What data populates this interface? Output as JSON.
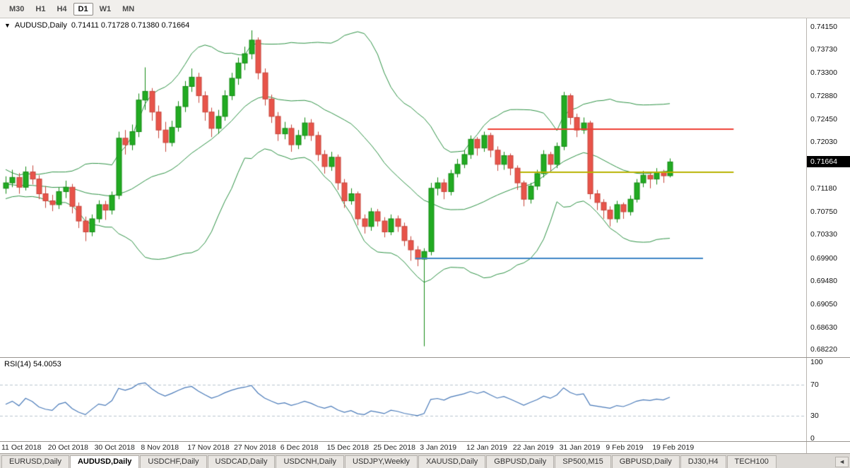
{
  "toolbar": {
    "timeframes": [
      {
        "label": "M30",
        "active": false
      },
      {
        "label": "H1",
        "active": false
      },
      {
        "label": "H4",
        "active": false
      },
      {
        "label": "D1",
        "active": true
      },
      {
        "label": "W1",
        "active": false
      },
      {
        "label": "MN",
        "active": false
      }
    ]
  },
  "chart_data": {
    "type": "candlestick",
    "symbol": "AUDUSD",
    "timeframe": "Daily",
    "title": "AUDUSD,Daily",
    "ohlc_text": "0.71411 0.71728 0.71380 0.71664",
    "last_ohlc": {
      "open": 0.71411,
      "high": 0.71728,
      "low": 0.7138,
      "close": 0.71664
    },
    "price_marker_label": "0.71664",
    "dropdown_icon": "▼",
    "y_range": [
      0.6808,
      0.743
    ],
    "y_tick_labels": [
      "0.74150",
      "0.73730",
      "0.73300",
      "0.72880",
      "0.72450",
      "0.72030",
      "0.71600",
      "0.71180",
      "0.70750",
      "0.70330",
      "0.69900",
      "0.69480",
      "0.69050",
      "0.68630",
      "0.68220"
    ],
    "x_tick_labels": [
      {
        "label": "11 Oct 2018",
        "index": 0
      },
      {
        "label": "20 Oct 2018",
        "index": 7
      },
      {
        "label": "30 Oct 2018",
        "index": 14
      },
      {
        "label": "8 Nov 2018",
        "index": 21
      },
      {
        "label": "17 Nov 2018",
        "index": 28
      },
      {
        "label": "27 Nov 2018",
        "index": 35
      },
      {
        "label": "6 Dec 2018",
        "index": 42
      },
      {
        "label": "15 Dec 2018",
        "index": 49
      },
      {
        "label": "25 Dec 2018",
        "index": 56
      },
      {
        "label": "3 Jan 2019",
        "index": 63
      },
      {
        "label": "12 Jan 2019",
        "index": 70
      },
      {
        "label": "22 Jan 2019",
        "index": 77
      },
      {
        "label": "31 Jan 2019",
        "index": 84
      },
      {
        "label": "9 Feb 2019",
        "index": 91
      },
      {
        "label": "19 Feb 2019",
        "index": 98
      }
    ],
    "pre_closes": [
      0.7155,
      0.7162,
      0.7148,
      0.7135,
      0.7142,
      0.7128,
      0.7115,
      0.7122,
      0.7108,
      0.7118,
      0.7125,
      0.7132,
      0.712,
      0.7112,
      0.7105,
      0.7118,
      0.7126,
      0.7132,
      0.7122,
      0.7115
    ],
    "candles": [
      [
        0.7118,
        0.714,
        0.7108,
        0.7128
      ],
      [
        0.7128,
        0.7152,
        0.712,
        0.7138
      ],
      [
        0.7138,
        0.7146,
        0.7108,
        0.712
      ],
      [
        0.712,
        0.7158,
        0.7114,
        0.7148
      ],
      [
        0.7148,
        0.716,
        0.7125,
        0.7135
      ],
      [
        0.7135,
        0.7142,
        0.7098,
        0.7108
      ],
      [
        0.7108,
        0.7122,
        0.7082,
        0.7095
      ],
      [
        0.7095,
        0.7106,
        0.7076,
        0.7088
      ],
      [
        0.7088,
        0.712,
        0.708,
        0.7112
      ],
      [
        0.7112,
        0.7132,
        0.71,
        0.712
      ],
      [
        0.712,
        0.7126,
        0.7072,
        0.7085
      ],
      [
        0.7085,
        0.7092,
        0.7045,
        0.7058
      ],
      [
        0.7058,
        0.7066,
        0.7021,
        0.7038
      ],
      [
        0.7038,
        0.707,
        0.703,
        0.7062
      ],
      [
        0.7062,
        0.7096,
        0.7055,
        0.7088
      ],
      [
        0.7088,
        0.7095,
        0.706,
        0.7078
      ],
      [
        0.7078,
        0.7112,
        0.707,
        0.7105
      ],
      [
        0.7105,
        0.7222,
        0.7098,
        0.721
      ],
      [
        0.721,
        0.7225,
        0.718,
        0.7198
      ],
      [
        0.7198,
        0.7235,
        0.7188,
        0.7222
      ],
      [
        0.7222,
        0.7292,
        0.7212,
        0.728
      ],
      [
        0.728,
        0.734,
        0.7262,
        0.7296
      ],
      [
        0.7296,
        0.7302,
        0.7242,
        0.7258
      ],
      [
        0.7258,
        0.727,
        0.721,
        0.7225
      ],
      [
        0.7225,
        0.724,
        0.7185,
        0.7202
      ],
      [
        0.7202,
        0.7242,
        0.7195,
        0.723
      ],
      [
        0.723,
        0.7278,
        0.7222,
        0.7268
      ],
      [
        0.7268,
        0.7315,
        0.7258,
        0.7305
      ],
      [
        0.7305,
        0.7338,
        0.7295,
        0.7322
      ],
      [
        0.7322,
        0.733,
        0.7275,
        0.7288
      ],
      [
        0.7288,
        0.7296,
        0.7242,
        0.7258
      ],
      [
        0.7258,
        0.7266,
        0.7212,
        0.7228
      ],
      [
        0.7228,
        0.7262,
        0.7218,
        0.725
      ],
      [
        0.725,
        0.7298,
        0.7242,
        0.7288
      ],
      [
        0.7288,
        0.733,
        0.728,
        0.732
      ],
      [
        0.732,
        0.7358,
        0.7308,
        0.7348
      ],
      [
        0.7348,
        0.7378,
        0.7335,
        0.7365
      ],
      [
        0.7365,
        0.7408,
        0.7355,
        0.739
      ],
      [
        0.739,
        0.7395,
        0.7318,
        0.733
      ],
      [
        0.733,
        0.7338,
        0.727,
        0.7282
      ],
      [
        0.7282,
        0.729,
        0.7238,
        0.725
      ],
      [
        0.725,
        0.7258,
        0.7205,
        0.7218
      ],
      [
        0.7218,
        0.724,
        0.7208,
        0.7228
      ],
      [
        0.7228,
        0.7235,
        0.7185,
        0.7198
      ],
      [
        0.7198,
        0.7225,
        0.719,
        0.7215
      ],
      [
        0.7215,
        0.7248,
        0.7208,
        0.7238
      ],
      [
        0.7238,
        0.7245,
        0.7205,
        0.7215
      ],
      [
        0.7215,
        0.7222,
        0.7168,
        0.718
      ],
      [
        0.718,
        0.7188,
        0.7145,
        0.7158
      ],
      [
        0.7158,
        0.7185,
        0.715,
        0.7175
      ],
      [
        0.7175,
        0.718,
        0.7115,
        0.7128
      ],
      [
        0.7128,
        0.7135,
        0.7082,
        0.7095
      ],
      [
        0.7095,
        0.7118,
        0.7088,
        0.7108
      ],
      [
        0.7108,
        0.7112,
        0.705,
        0.7062
      ],
      [
        0.7062,
        0.707,
        0.7035,
        0.7048
      ],
      [
        0.7048,
        0.7082,
        0.704,
        0.7075
      ],
      [
        0.7075,
        0.708,
        0.7048,
        0.7058
      ],
      [
        0.7058,
        0.7065,
        0.7028,
        0.7038
      ],
      [
        0.7038,
        0.707,
        0.7032,
        0.7062
      ],
      [
        0.7062,
        0.7068,
        0.7038,
        0.7048
      ],
      [
        0.7048,
        0.7055,
        0.7012,
        0.7022
      ],
      [
        0.7022,
        0.703,
        0.6985,
        0.7005
      ],
      [
        0.7005,
        0.7012,
        0.6975,
        0.6988
      ],
      [
        0.6988,
        0.7008,
        0.6828,
        0.7002
      ],
      [
        0.7002,
        0.7128,
        0.6995,
        0.7118
      ],
      [
        0.7118,
        0.7138,
        0.7105,
        0.7128
      ],
      [
        0.7128,
        0.7135,
        0.7098,
        0.7112
      ],
      [
        0.7112,
        0.7152,
        0.7105,
        0.7145
      ],
      [
        0.7145,
        0.7172,
        0.7138,
        0.7162
      ],
      [
        0.7162,
        0.7188,
        0.7155,
        0.718
      ],
      [
        0.718,
        0.7215,
        0.7172,
        0.7208
      ],
      [
        0.7208,
        0.7212,
        0.7178,
        0.7192
      ],
      [
        0.7192,
        0.7222,
        0.7185,
        0.7215
      ],
      [
        0.7215,
        0.722,
        0.7175,
        0.7188
      ],
      [
        0.7188,
        0.7195,
        0.715,
        0.7162
      ],
      [
        0.7162,
        0.7185,
        0.7152,
        0.7178
      ],
      [
        0.7178,
        0.7182,
        0.7142,
        0.7155
      ],
      [
        0.7155,
        0.716,
        0.7115,
        0.7128
      ],
      [
        0.7128,
        0.7132,
        0.7085,
        0.7098
      ],
      [
        0.7098,
        0.7128,
        0.709,
        0.7122
      ],
      [
        0.7122,
        0.7152,
        0.7115,
        0.7145
      ],
      [
        0.7145,
        0.7188,
        0.7138,
        0.718
      ],
      [
        0.718,
        0.7185,
        0.715,
        0.7162
      ],
      [
        0.7162,
        0.7202,
        0.7155,
        0.7195
      ],
      [
        0.7195,
        0.7295,
        0.7188,
        0.7288
      ],
      [
        0.7288,
        0.7292,
        0.7235,
        0.7248
      ],
      [
        0.7248,
        0.7255,
        0.7212,
        0.7225
      ],
      [
        0.7225,
        0.7248,
        0.7218,
        0.7238
      ],
      [
        0.7238,
        0.7242,
        0.7098,
        0.7108
      ],
      [
        0.7108,
        0.7115,
        0.7078,
        0.7092
      ],
      [
        0.7092,
        0.7098,
        0.7062,
        0.7078
      ],
      [
        0.7078,
        0.7085,
        0.7048,
        0.7062
      ],
      [
        0.7062,
        0.7095,
        0.7055,
        0.7088
      ],
      [
        0.7088,
        0.7092,
        0.7062,
        0.7075
      ],
      [
        0.7075,
        0.7105,
        0.7068,
        0.7098
      ],
      [
        0.7098,
        0.7135,
        0.7092,
        0.7128
      ],
      [
        0.7128,
        0.715,
        0.712,
        0.7142
      ],
      [
        0.7142,
        0.7148,
        0.7118,
        0.7135
      ],
      [
        0.7135,
        0.7155,
        0.7125,
        0.7148
      ],
      [
        0.7148,
        0.7152,
        0.7128,
        0.7141
      ],
      [
        0.71411,
        0.71728,
        0.7138,
        0.71664
      ]
    ],
    "overlays": {
      "bollinger": {
        "period": 20,
        "deviation": 2,
        "color": "#2c9143"
      },
      "hlines": [
        {
          "price": 0.7226,
          "color": "#ee4035",
          "from_frac": 0.605,
          "to_frac": 0.91
        },
        {
          "price": 0.7148,
          "color": "#b8b200",
          "from_frac": 0.645,
          "to_frac": 0.91
        },
        {
          "price": 0.699,
          "color": "#3d85c6",
          "from_frac": 0.515,
          "to_frac": 0.872
        }
      ]
    },
    "rsi": {
      "period": 14,
      "current": 54.0053,
      "levels": [
        70,
        30
      ],
      "range": [
        0,
        100
      ]
    }
  },
  "rsi_panel": {
    "label": "RSI(14) 54.0053",
    "axis_ticks": [
      100,
      70,
      30,
      0
    ]
  },
  "tabs": {
    "items": [
      {
        "label": "EURUSD,Daily",
        "active": false
      },
      {
        "label": "AUDUSD,Daily",
        "active": true
      },
      {
        "label": "USDCHF,Daily",
        "active": false
      },
      {
        "label": "USDCAD,Daily",
        "active": false
      },
      {
        "label": "USDCNH,Daily",
        "active": false
      },
      {
        "label": "USDJPY,Weekly",
        "active": false
      },
      {
        "label": "XAUUSD,Daily",
        "active": false
      },
      {
        "label": "GBPUSD,Daily",
        "active": false
      },
      {
        "label": "SP500,M15",
        "active": false
      },
      {
        "label": "GBPUSD,Daily",
        "active": false
      },
      {
        "label": "DJ30,H4",
        "active": false
      },
      {
        "label": "TECH100",
        "active": false
      }
    ],
    "scroll_icon": "◄"
  },
  "colors": {
    "up_stroke": "#128a12",
    "up_fill": "#22ab22",
    "down_stroke": "#c6453b",
    "down_fill": "#e8544a",
    "bands": "#2c9143",
    "rsi_line": "#4879b8",
    "rsi_level_dash": "#b9c4ce",
    "badge_bg": "#000000",
    "badge_text": "#ffffff"
  }
}
